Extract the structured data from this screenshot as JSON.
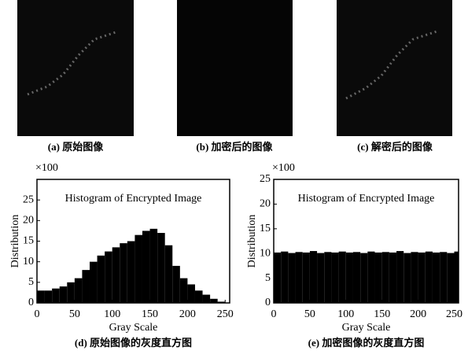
{
  "images": [
    {
      "caption": "(a) 原始图像"
    },
    {
      "caption": "(b) 加密后的图像"
    },
    {
      "caption": "(c) 解密后的图像"
    }
  ],
  "chart_data": [
    {
      "type": "bar",
      "title": "Histogram of Encrypted Image",
      "multiplier": "×100",
      "x_label": "Gray Scale",
      "y_label": "Distribution",
      "caption": "(d) 原始图像的灰度直方图",
      "x": [
        0,
        10,
        20,
        30,
        40,
        50,
        60,
        70,
        80,
        90,
        100,
        110,
        120,
        130,
        140,
        150,
        160,
        170,
        180,
        190,
        200,
        210,
        220,
        230,
        240,
        250
      ],
      "values": [
        3,
        3,
        3.5,
        4,
        5,
        6,
        8,
        10,
        11.5,
        12.5,
        13.5,
        14.5,
        15,
        16.5,
        17.5,
        18,
        17,
        14,
        9,
        6,
        4.5,
        3,
        2,
        1,
        0.3,
        0
      ],
      "color": "#000000",
      "xlim": [
        0,
        256
      ],
      "ylim": [
        0,
        30
      ],
      "xticks": [
        0,
        50,
        100,
        150,
        200,
        250
      ],
      "yticks": [
        0,
        5,
        10,
        15,
        20,
        25
      ]
    },
    {
      "type": "bar",
      "title": "Histogram of Encrypted Image",
      "multiplier": "×100",
      "x_label": "Gray Scale",
      "y_label": "Distribution",
      "caption": "(e) 加密图像的灰度直方图",
      "x": [
        0,
        10,
        20,
        30,
        40,
        50,
        60,
        70,
        80,
        90,
        100,
        110,
        120,
        130,
        140,
        150,
        160,
        170,
        180,
        190,
        200,
        210,
        220,
        230,
        240,
        250
      ],
      "values": [
        10.2,
        10.4,
        10.1,
        10.3,
        10.2,
        10.5,
        10.1,
        10.3,
        10.2,
        10.4,
        10.2,
        10.3,
        10.1,
        10.4,
        10.2,
        10.3,
        10.2,
        10.5,
        10.1,
        10.3,
        10.2,
        10.4,
        10.2,
        10.3,
        10.1,
        10.4
      ],
      "color": "#000000",
      "xlim": [
        0,
        256
      ],
      "ylim": [
        0,
        25
      ],
      "xticks": [
        0,
        50,
        100,
        150,
        200,
        250
      ],
      "yticks": [
        0,
        5,
        10,
        15,
        20,
        25
      ]
    }
  ]
}
